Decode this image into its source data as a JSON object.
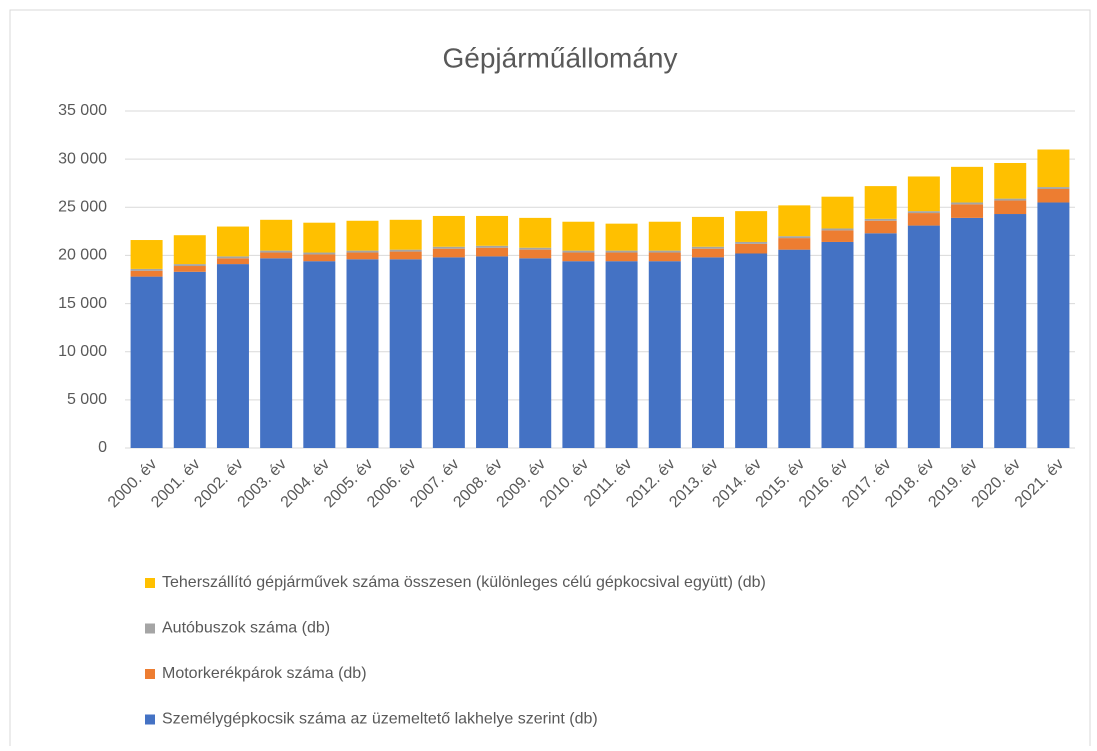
{
  "chart_data": {
    "type": "stacked_bar",
    "title": "Gépjárműállomány",
    "categories": [
      "2000. év",
      "2001. év",
      "2002. év",
      "2003. év",
      "2004. év",
      "2005. év",
      "2006. év",
      "2007. év",
      "2008. év",
      "2009. év",
      "2010. év",
      "2011. év",
      "2012. év",
      "2013. év",
      "2014. év",
      "2015. év",
      "2016. év",
      "2017. év",
      "2018. év",
      "2019. év",
      "2020. év",
      "2021. év"
    ],
    "series": [
      {
        "name": "Személygépkocsik száma az üzemeltető lakhelye szerint (db)",
        "color": "#4472c4",
        "values": [
          17800,
          18300,
          19100,
          19700,
          19400,
          19600,
          19600,
          19800,
          19900,
          19700,
          19400,
          19400,
          19400,
          19800,
          20200,
          20600,
          21400,
          22300,
          23100,
          23900,
          24300,
          25500
        ]
      },
      {
        "name": "Motorkerékpárok száma (db)",
        "color": "#ed7d31",
        "values": [
          600,
          600,
          600,
          600,
          700,
          700,
          800,
          900,
          900,
          900,
          900,
          900,
          900,
          900,
          1000,
          1200,
          1200,
          1300,
          1300,
          1400,
          1400,
          1400
        ]
      },
      {
        "name": "Autóbuszok száma (db)",
        "color": "#a5a5a5",
        "values": [
          200,
          200,
          200,
          200,
          200,
          200,
          200,
          200,
          200,
          200,
          200,
          200,
          200,
          200,
          200,
          200,
          200,
          200,
          200,
          200,
          200,
          200
        ]
      },
      {
        "name": "Teherszállító gépjárművek száma összesen (különleges célú gépkocsival  együtt) (db)",
        "color": "#ffc000",
        "values": [
          3000,
          3000,
          3100,
          3200,
          3100,
          3100,
          3100,
          3200,
          3100,
          3100,
          3000,
          2800,
          3000,
          3100,
          3200,
          3200,
          3300,
          3400,
          3600,
          3700,
          3700,
          3900
        ]
      }
    ],
    "ylim": [
      0,
      35000
    ],
    "yticks": [
      0,
      {
        "value": 5000,
        "label": "5 000"
      },
      {
        "value": 10000,
        "label": "10 000"
      },
      {
        "value": 15000,
        "label": "15 000"
      },
      {
        "value": 20000,
        "label": "20 000"
      },
      {
        "value": 25000,
        "label": "25 000"
      },
      {
        "value": 30000,
        "label": "30 000"
      },
      {
        "value": 35000,
        "label": "35 000"
      }
    ],
    "grid": true,
    "legend": "bottom"
  }
}
